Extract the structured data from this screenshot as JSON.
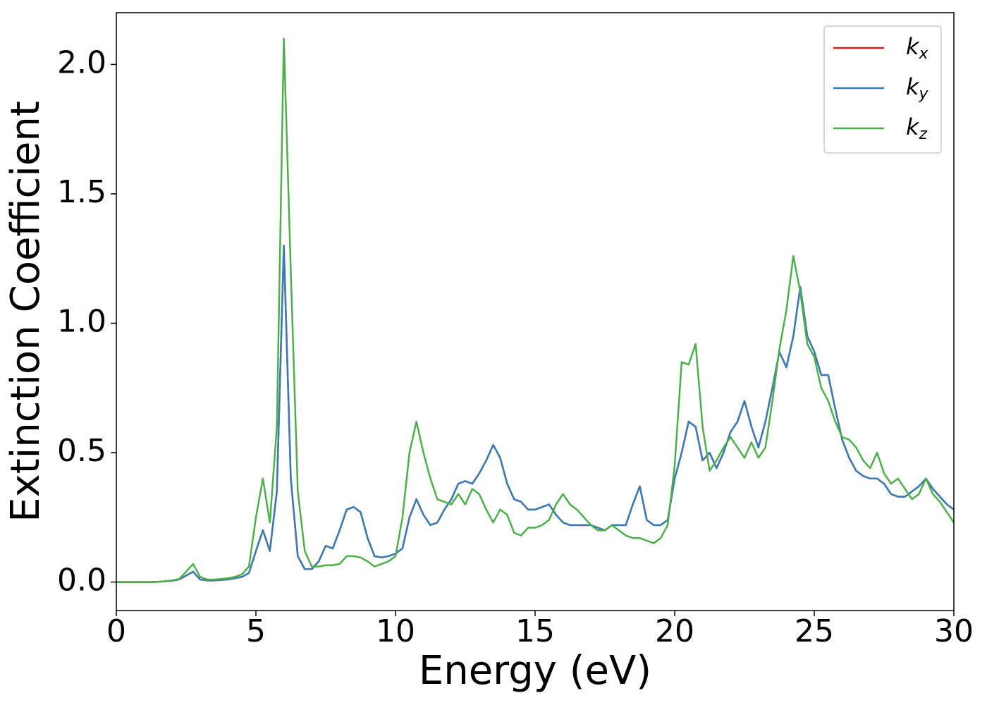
{
  "chart_data": {
    "type": "line",
    "xlabel": "Energy (eV)",
    "ylabel": "Extinction Coefficient",
    "x": [
      0,
      0.25,
      0.5,
      0.75,
      1,
      1.25,
      1.5,
      1.75,
      2,
      2.25,
      2.5,
      2.75,
      3,
      3.25,
      3.5,
      3.75,
      4,
      4.25,
      4.5,
      4.75,
      5,
      5.25,
      5.5,
      5.75,
      6,
      6.25,
      6.5,
      6.75,
      7,
      7.25,
      7.5,
      7.75,
      8,
      8.25,
      8.5,
      8.75,
      9,
      9.25,
      9.5,
      9.75,
      10,
      10.25,
      10.5,
      10.75,
      11,
      11.25,
      11.5,
      11.75,
      12,
      12.25,
      12.5,
      12.75,
      13,
      13.25,
      13.5,
      13.75,
      14,
      14.25,
      14.5,
      14.75,
      15,
      15.25,
      15.5,
      15.75,
      16,
      16.25,
      16.5,
      16.75,
      17,
      17.25,
      17.5,
      17.75,
      18,
      18.25,
      18.5,
      18.75,
      19,
      19.25,
      19.5,
      19.75,
      20,
      20.25,
      20.5,
      20.75,
      21,
      21.25,
      21.5,
      21.75,
      22,
      22.25,
      22.5,
      22.75,
      23,
      23.25,
      23.5,
      23.75,
      24,
      24.25,
      24.5,
      24.75,
      25,
      25.25,
      25.5,
      25.75,
      26,
      26.25,
      26.5,
      26.75,
      27,
      27.25,
      27.5,
      27.75,
      28,
      28.25,
      28.5,
      28.75,
      29,
      29.25,
      29.5,
      29.75,
      30
    ],
    "series": [
      {
        "name": "kx",
        "color": "#e41a1c",
        "values": [
          0,
          0,
          0,
          0,
          0,
          0,
          0.001,
          0.003,
          0.005,
          0.01,
          0.025,
          0.04,
          0.01,
          0.006,
          0.006,
          0.008,
          0.01,
          0.015,
          0.02,
          0.035,
          0.12,
          0.2,
          0.12,
          0.35,
          1.3,
          0.4,
          0.1,
          0.05,
          0.05,
          0.08,
          0.14,
          0.13,
          0.2,
          0.28,
          0.29,
          0.27,
          0.17,
          0.1,
          0.095,
          0.1,
          0.11,
          0.13,
          0.25,
          0.32,
          0.26,
          0.22,
          0.23,
          0.28,
          0.32,
          0.38,
          0.39,
          0.38,
          0.42,
          0.47,
          0.53,
          0.48,
          0.38,
          0.32,
          0.31,
          0.28,
          0.28,
          0.29,
          0.3,
          0.26,
          0.23,
          0.22,
          0.22,
          0.22,
          0.22,
          0.21,
          0.2,
          0.22,
          0.22,
          0.22,
          0.3,
          0.37,
          0.24,
          0.22,
          0.22,
          0.24,
          0.4,
          0.5,
          0.62,
          0.6,
          0.47,
          0.5,
          0.44,
          0.5,
          0.58,
          0.62,
          0.7,
          0.6,
          0.52,
          0.62,
          0.75,
          0.89,
          0.83,
          0.95,
          1.14,
          0.95,
          0.89,
          0.8,
          0.8,
          0.67,
          0.55,
          0.48,
          0.43,
          0.41,
          0.4,
          0.4,
          0.38,
          0.34,
          0.33,
          0.33,
          0.35,
          0.37,
          0.4,
          0.36,
          0.33,
          0.3,
          0.28
        ]
      },
      {
        "name": "ky",
        "color": "#377eb8",
        "values": [
          0,
          0,
          0,
          0,
          0,
          0,
          0.001,
          0.003,
          0.005,
          0.01,
          0.025,
          0.04,
          0.01,
          0.006,
          0.006,
          0.008,
          0.01,
          0.015,
          0.02,
          0.035,
          0.12,
          0.2,
          0.12,
          0.35,
          1.3,
          0.4,
          0.1,
          0.05,
          0.05,
          0.08,
          0.14,
          0.13,
          0.2,
          0.28,
          0.29,
          0.27,
          0.17,
          0.1,
          0.095,
          0.1,
          0.11,
          0.13,
          0.25,
          0.32,
          0.26,
          0.22,
          0.23,
          0.28,
          0.32,
          0.38,
          0.39,
          0.38,
          0.42,
          0.47,
          0.53,
          0.48,
          0.38,
          0.32,
          0.31,
          0.28,
          0.28,
          0.29,
          0.3,
          0.26,
          0.23,
          0.22,
          0.22,
          0.22,
          0.22,
          0.21,
          0.2,
          0.22,
          0.22,
          0.22,
          0.3,
          0.37,
          0.24,
          0.22,
          0.22,
          0.24,
          0.4,
          0.5,
          0.62,
          0.6,
          0.47,
          0.5,
          0.44,
          0.5,
          0.58,
          0.62,
          0.7,
          0.6,
          0.52,
          0.62,
          0.75,
          0.89,
          0.83,
          0.95,
          1.14,
          0.95,
          0.89,
          0.8,
          0.8,
          0.67,
          0.55,
          0.48,
          0.43,
          0.41,
          0.4,
          0.4,
          0.38,
          0.34,
          0.33,
          0.33,
          0.35,
          0.37,
          0.4,
          0.36,
          0.33,
          0.3,
          0.28
        ]
      },
      {
        "name": "kz",
        "color": "#4daf4a",
        "values": [
          0,
          0,
          0,
          0,
          0,
          0,
          0.001,
          0.003,
          0.006,
          0.012,
          0.04,
          0.07,
          0.02,
          0.01,
          0.01,
          0.012,
          0.015,
          0.02,
          0.03,
          0.06,
          0.25,
          0.4,
          0.23,
          0.6,
          2.1,
          1.2,
          0.35,
          0.12,
          0.06,
          0.06,
          0.065,
          0.065,
          0.07,
          0.1,
          0.1,
          0.095,
          0.08,
          0.06,
          0.07,
          0.08,
          0.1,
          0.25,
          0.5,
          0.62,
          0.5,
          0.4,
          0.32,
          0.31,
          0.3,
          0.34,
          0.3,
          0.36,
          0.34,
          0.28,
          0.23,
          0.28,
          0.26,
          0.19,
          0.18,
          0.21,
          0.21,
          0.22,
          0.24,
          0.3,
          0.34,
          0.3,
          0.28,
          0.25,
          0.22,
          0.2,
          0.2,
          0.22,
          0.2,
          0.18,
          0.17,
          0.17,
          0.16,
          0.15,
          0.17,
          0.22,
          0.45,
          0.85,
          0.84,
          0.92,
          0.6,
          0.43,
          0.47,
          0.52,
          0.56,
          0.52,
          0.48,
          0.54,
          0.48,
          0.52,
          0.7,
          0.9,
          1.05,
          1.26,
          1.12,
          0.92,
          0.87,
          0.75,
          0.7,
          0.62,
          0.56,
          0.55,
          0.52,
          0.47,
          0.44,
          0.5,
          0.42,
          0.38,
          0.4,
          0.36,
          0.32,
          0.34,
          0.4,
          0.34,
          0.31,
          0.27,
          0.23
        ]
      }
    ],
    "xlim": [
      0,
      30
    ],
    "xticks": [
      0,
      5,
      10,
      15,
      20,
      25,
      30
    ],
    "ylim": [
      -0.11,
      2.2
    ],
    "yticks": [
      {
        "value": 0,
        "label": "0.0"
      },
      0.5,
      {
        "value": 1,
        "label": "1.0"
      },
      1.5,
      {
        "value": 2,
        "label": "2.0"
      }
    ],
    "grid": false,
    "legend": "upper right"
  }
}
